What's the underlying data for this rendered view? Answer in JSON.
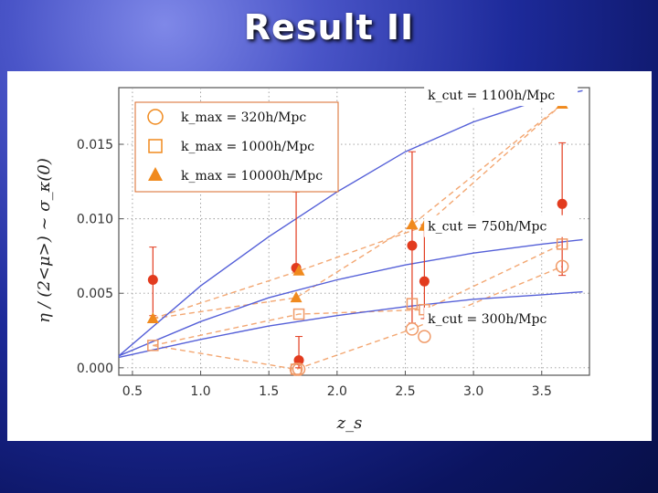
{
  "slide": {
    "title": "Result II"
  },
  "chart_data": {
    "type": "scatter",
    "title": "",
    "xlabel": "z_s",
    "ylabel": "η / (2<μ>) ~ σ_κ(0)",
    "xlim": [
      0.4,
      3.85
    ],
    "ylim": [
      -0.0005,
      0.0188
    ],
    "xticks": [
      "0.5",
      "1.0",
      "1.5",
      "2.0",
      "2.5",
      "3.0",
      "3.5"
    ],
    "yticks": [
      "0.000",
      "0.005",
      "0.010",
      "0.015"
    ],
    "grid": true,
    "legend_position": "top-left",
    "legend": [
      {
        "label": "k_max = 320h/Mpc",
        "marker": "circle"
      },
      {
        "label": "k_max = 1000h/Mpc",
        "marker": "square"
      },
      {
        "label": "k_max = 10000h/Mpc",
        "marker": "triangle"
      }
    ],
    "series": [
      {
        "kind": "points",
        "marker": "filled-circle",
        "color": "#e23b1e",
        "points": [
          {
            "x": 0.65,
            "y": 0.0059,
            "err_lo": 0.0024,
            "err_hi": 0.0022
          },
          {
            "x": 1.7,
            "y": 0.0067,
            "err_lo": 0.0,
            "err_hi": 0.0051
          },
          {
            "x": 1.72,
            "y": 0.0005,
            "err_lo": 0.0005,
            "err_hi": 0.0016
          },
          {
            "x": 2.55,
            "y": 0.0082,
            "err_lo": 0.0052,
            "err_hi": 0.0063
          },
          {
            "x": 2.64,
            "y": 0.0058,
            "err_lo": 0.0025,
            "err_hi": 0.0038
          },
          {
            "x": 3.65,
            "y": 0.011,
            "err_lo": 0.0048,
            "err_hi": 0.0041
          }
        ]
      },
      {
        "kind": "points",
        "marker": "open-circle",
        "color": "#f09a68",
        "points": [
          {
            "x": 1.7,
            "y": -0.0001
          },
          {
            "x": 1.72,
            "y": -0.0001
          },
          {
            "x": 2.55,
            "y": 0.0026
          },
          {
            "x": 2.64,
            "y": 0.0021
          },
          {
            "x": 3.65,
            "y": 0.0068
          }
        ]
      },
      {
        "kind": "points",
        "marker": "open-square",
        "color": "#f09a68",
        "points": [
          {
            "x": 0.65,
            "y": 0.0015
          },
          {
            "x": 1.7,
            "y": -0.0001
          },
          {
            "x": 1.72,
            "y": 0.0036
          },
          {
            "x": 2.55,
            "y": 0.0043
          },
          {
            "x": 2.64,
            "y": 0.0039
          },
          {
            "x": 3.65,
            "y": 0.0083
          }
        ]
      },
      {
        "kind": "points",
        "marker": "filled-triangle",
        "color": "#f08a1e",
        "points": [
          {
            "x": 0.65,
            "y": 0.0033
          },
          {
            "x": 1.7,
            "y": 0.0047
          },
          {
            "x": 1.72,
            "y": 0.0065
          },
          {
            "x": 2.55,
            "y": 0.0096
          },
          {
            "x": 2.64,
            "y": 0.0095
          },
          {
            "x": 3.65,
            "y": 0.0177
          }
        ]
      },
      {
        "kind": "dashed-line",
        "color": "#f3a772",
        "points": [
          [
            0.65,
            0.0015
          ],
          [
            1.7,
            -0.0001
          ],
          [
            2.55,
            0.0026
          ],
          [
            3.65,
            0.0068
          ]
        ]
      },
      {
        "kind": "dashed-line",
        "color": "#f3a772",
        "points": [
          [
            0.65,
            0.0015
          ],
          [
            1.72,
            0.0036
          ],
          [
            2.64,
            0.0039
          ],
          [
            3.65,
            0.0083
          ]
        ]
      },
      {
        "kind": "dashed-line",
        "color": "#f3a772",
        "points": [
          [
            0.65,
            0.0033
          ],
          [
            1.7,
            0.0047
          ],
          [
            2.55,
            0.0096
          ],
          [
            3.65,
            0.0177
          ]
        ]
      },
      {
        "kind": "dashed-line",
        "color": "#f3a772",
        "points": [
          [
            0.65,
            0.0033
          ],
          [
            1.72,
            0.0065
          ],
          [
            2.64,
            0.0095
          ],
          [
            3.65,
            0.0177
          ]
        ]
      },
      {
        "kind": "solid-curve",
        "color": "#5560d8",
        "label": "k_cut = 1100h/Mpc",
        "points": [
          [
            0.4,
            0.0008
          ],
          [
            1.0,
            0.0055
          ],
          [
            1.5,
            0.0088
          ],
          [
            2.0,
            0.0118
          ],
          [
            2.5,
            0.0145
          ],
          [
            3.0,
            0.0165
          ],
          [
            3.5,
            0.018
          ],
          [
            3.8,
            0.0186
          ]
        ]
      },
      {
        "kind": "solid-curve",
        "color": "#5560d8",
        "label": "k_cut = 750h/Mpc",
        "points": [
          [
            0.4,
            0.0008
          ],
          [
            1.0,
            0.0031
          ],
          [
            1.5,
            0.0047
          ],
          [
            2.0,
            0.0059
          ],
          [
            2.5,
            0.0069
          ],
          [
            3.0,
            0.0077
          ],
          [
            3.5,
            0.0083
          ],
          [
            3.8,
            0.0086
          ]
        ]
      },
      {
        "kind": "solid-curve",
        "color": "#5560d8",
        "label": "k_cut = 300h/Mpc",
        "points": [
          [
            0.4,
            0.0007
          ],
          [
            1.0,
            0.0019
          ],
          [
            1.5,
            0.0028
          ],
          [
            2.0,
            0.0035
          ],
          [
            2.5,
            0.0041
          ],
          [
            3.0,
            0.0046
          ],
          [
            3.5,
            0.0049
          ],
          [
            3.8,
            0.0051
          ]
        ]
      }
    ],
    "annotations": [
      {
        "text": "k_cut = 1100h/Mpc",
        "x": 3.0,
        "y": 0.018
      },
      {
        "text": "k_cut = 750h/Mpc",
        "x": 3.0,
        "y": 0.0092
      },
      {
        "text": "k_cut = 300h/Mpc",
        "x": 3.0,
        "y": 0.003
      }
    ]
  }
}
